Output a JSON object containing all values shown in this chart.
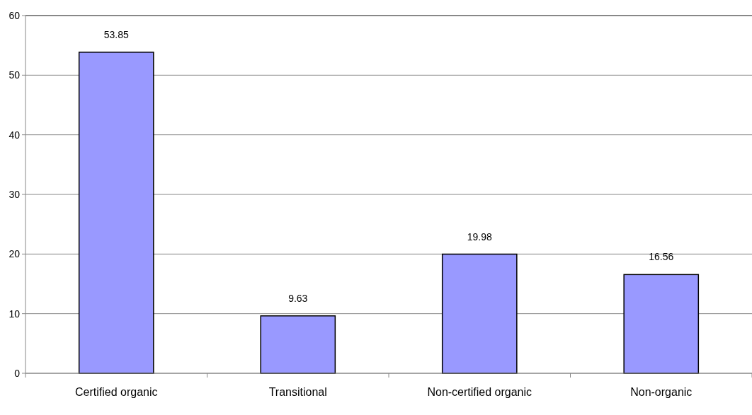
{
  "chart_data": {
    "type": "bar",
    "categories": [
      "Certified organic",
      "Transitional",
      "Non-certified organic",
      "Non-organic"
    ],
    "values": [
      53.85,
      9.63,
      19.98,
      16.56
    ],
    "color": "#9999ff",
    "ylim": [
      0,
      60
    ],
    "yticks": [
      0,
      10,
      20,
      30,
      40,
      50,
      60
    ],
    "grid": "y",
    "data_labels": true
  }
}
